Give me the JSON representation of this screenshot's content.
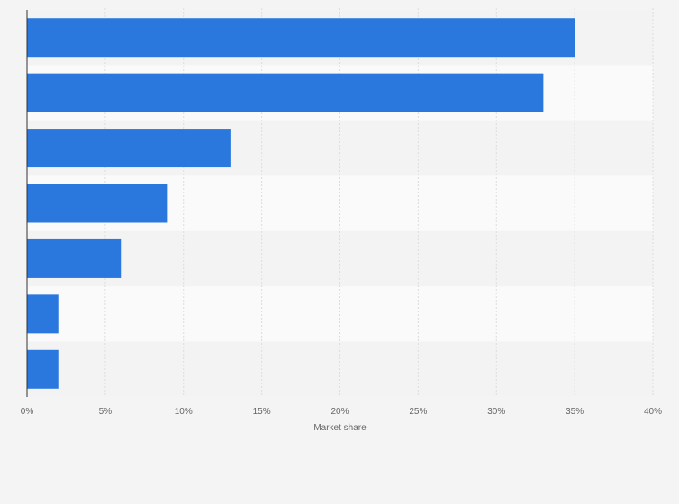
{
  "chart_data": {
    "type": "bar",
    "orientation": "horizontal",
    "categories": [
      "",
      "",
      "",
      "",
      "",
      "",
      ""
    ],
    "values": [
      35,
      33,
      13,
      9,
      6,
      2,
      2
    ],
    "title": "",
    "xlabel": "Market share",
    "ylabel": "",
    "xlim": [
      0,
      40
    ],
    "x_ticks": [
      "0%",
      "5%",
      "10%",
      "15%",
      "20%",
      "25%",
      "30%",
      "35%",
      "40%"
    ],
    "grid": true,
    "legend": "none"
  },
  "colors": {
    "bar": "#2a77dd",
    "background": "#f4f4f4",
    "band_light": "#fafafa",
    "band_dark": "#f3f3f3",
    "grid": "#dddddd",
    "axis": "#333333"
  }
}
